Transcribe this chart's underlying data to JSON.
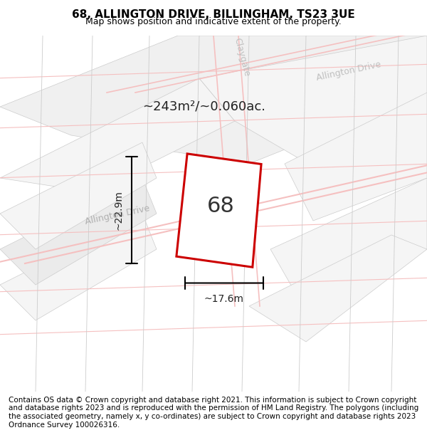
{
  "title_line1": "68, ALLINGTON DRIVE, BILLINGHAM, TS23 3UE",
  "title_line2": "Map shows position and indicative extent of the property.",
  "footer": "Contains OS data © Crown copyright and database right 2021. This information is subject to Crown copyright and database rights 2023 and is reproduced with the permission of HM Land Registry. The polygons (including the associated geometry, namely x, y co-ordinates) are subject to Crown copyright and database rights 2023 Ordnance Survey 100026316.",
  "area_label": "~243m²/~0.060ac.",
  "width_label": "~17.6m",
  "height_label": "~22.9m",
  "house_number": "68",
  "bg_color": "#f0f0f0",
  "plot_fill": "#ffffff",
  "plot_edge": "#cc0000",
  "road_color": "#f5c0c0",
  "gray_line_color": "#cccccc",
  "street_label1": "Allington Drive",
  "street_label2": "Claygate",
  "street_label3": "Allington Drive",
  "title_fontsize": 11,
  "subtitle_fontsize": 9,
  "footer_fontsize": 7.5
}
